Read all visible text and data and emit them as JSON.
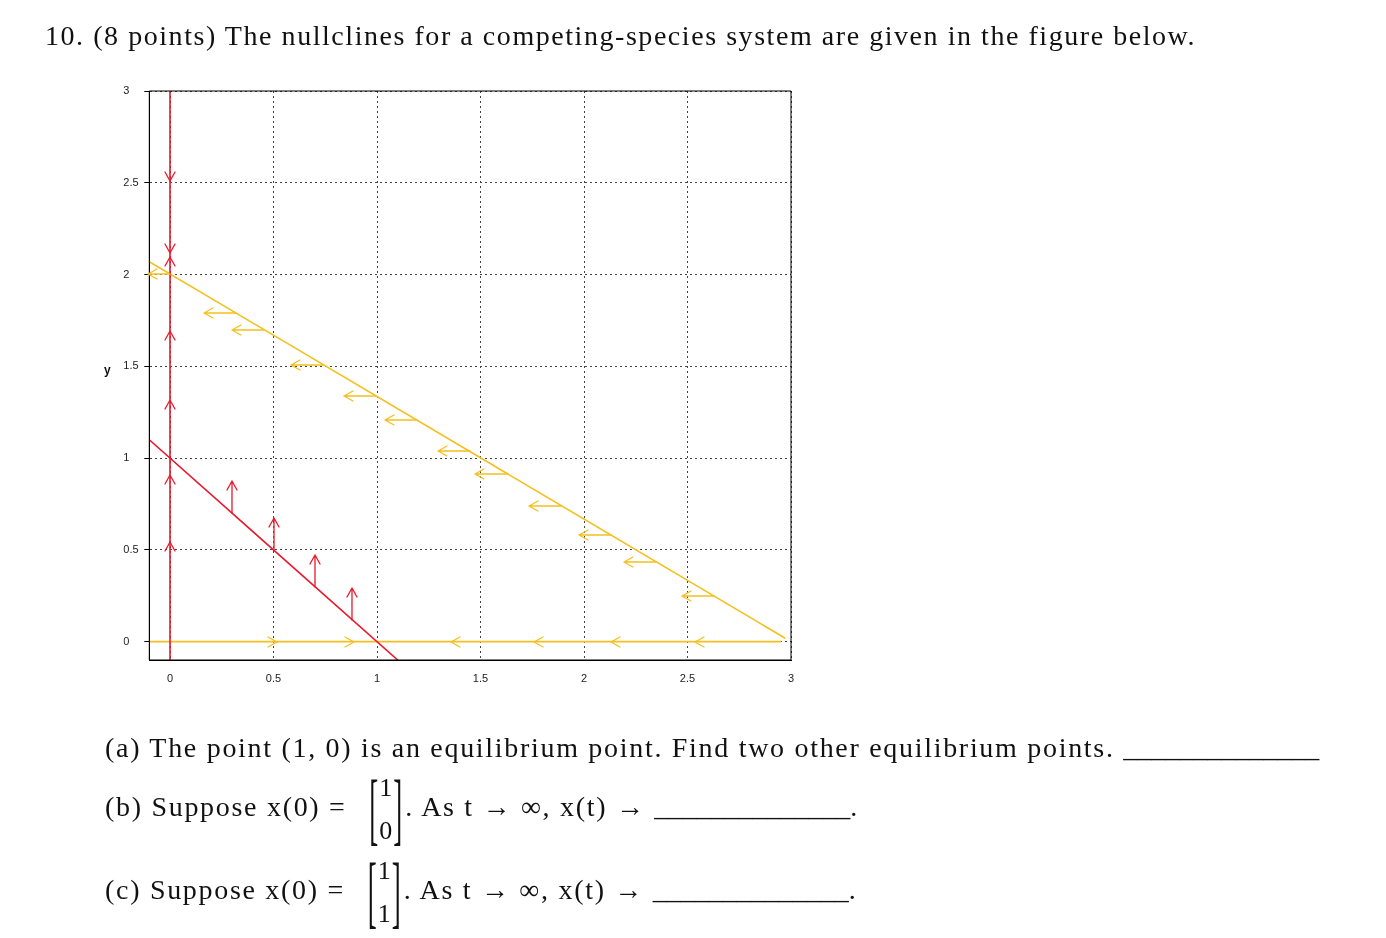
{
  "chart_data": {
    "type": "line",
    "title": "10. (8 points) The nullclines for a competing-species system are given in the figure below.",
    "ylabel": "y",
    "annotations": [
      "(a) The point (1, 0) is an equilibrium point. Find two other equilibrium points. ______________",
      "(b) Suppose x(0) = [1 0]. As t → ∞, x(t) → ______________.",
      "(c) Suppose x(0) = [1 1]. As t → ∞, x(t) → ______________."
    ],
    "series": [
      {
        "color": "#e8192c",
        "x": [
          0,
          0
        ],
        "values": [
          -0.1,
          3
        ]
      },
      {
        "color": "#e8192c",
        "x": [
          -0.1,
          1.1
        ],
        "values": [
          1.1,
          -0.1
        ]
      },
      {
        "color": "#f4c020",
        "x": [
          -0.1,
          2.97
        ],
        "values": [
          2.07,
          0.02
        ]
      },
      {
        "color": "#f4c020",
        "x": [
          -0.1,
          2.95
        ],
        "values": [
          0,
          0
        ]
      }
    ],
    "xlim": [
      -0.1,
      3
    ],
    "ylim": [
      -0.1,
      3
    ],
    "xticks": [
      0,
      0.5,
      1,
      1.5,
      2,
      2.5,
      3
    ],
    "yticks": [
      0,
      0.5,
      1,
      1.5,
      2,
      2.5,
      3
    ],
    "grid": true,
    "marker": "none",
    "line_style": "solid"
  }
}
